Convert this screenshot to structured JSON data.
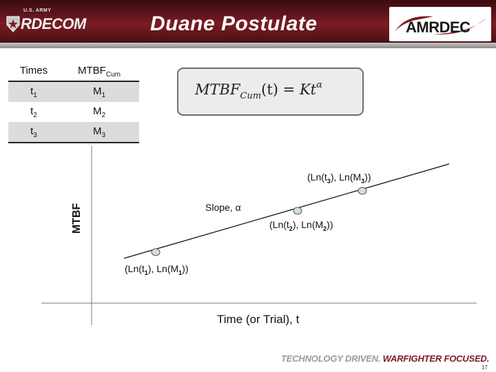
{
  "header": {
    "left_logo_small": "U.S. ARMY",
    "left_logo_main": "RDECOM",
    "title": "Duane Postulate",
    "right_logo": "AMRDEC"
  },
  "table": {
    "col1_header": "Times",
    "col2_header_main": "MTBF",
    "col2_header_sub": "Cum",
    "rows": [
      {
        "t": "t",
        "t_sub": "1",
        "m": "M",
        "m_sub": "1"
      },
      {
        "t": "t",
        "t_sub": "2",
        "m": "M",
        "m_sub": "2"
      },
      {
        "t": "t",
        "t_sub": "3",
        "m": "M",
        "m_sub": "3"
      }
    ]
  },
  "equation": {
    "lhs": "MTBF",
    "lhs_sub": "Cum",
    "arg": "(t) = ",
    "rhs": "Kt",
    "exponent": "α"
  },
  "diagram": {
    "y_axis_label": "MTBF",
    "x_axis_label": "Time (or Trial), t",
    "slope_label": "Slope, α",
    "points": [
      {
        "prefix": "(Ln(t",
        "sub1": "1",
        "mid": "), Ln(M",
        "sub2": "1",
        "suffix": "))"
      },
      {
        "prefix": "(Ln(t",
        "sub1": "2",
        "mid": "), Ln(M",
        "sub2": "2",
        "suffix": "))"
      },
      {
        "prefix": "(Ln(t",
        "sub1": "3",
        "mid": "), Ln(M",
        "sub2": "3",
        "suffix": "))"
      }
    ],
    "point_color": "#cfe0d6",
    "line_color": "#111111"
  },
  "footer": {
    "tagline_part1": "TECHNOLOGY DRIVEN.",
    "tagline_part2": "WARFIGHTER FOCUSED.",
    "page_number": "17"
  },
  "colors": {
    "header_maroon": "#6b1820",
    "table_shade": "#dcdcdc",
    "equation_bg": "#ececec"
  }
}
